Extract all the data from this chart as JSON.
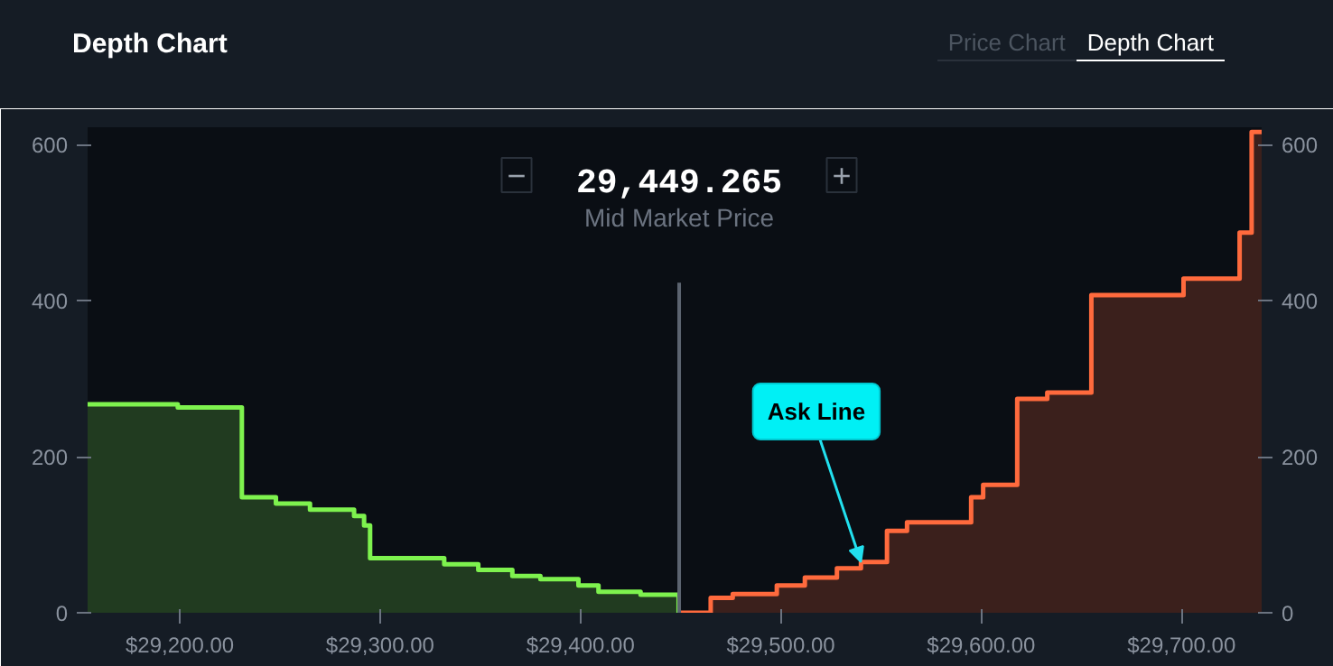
{
  "chart_data": {
    "type": "step",
    "title": "Depth Chart",
    "xlim": [
      29154,
      29740
    ],
    "ylim": [
      0,
      622
    ],
    "y2lim": [
      0,
      622
    ],
    "xticks": [
      {
        "value": 29200,
        "label": "$29,200.00"
      },
      {
        "value": 29300,
        "label": "$29,300.00"
      },
      {
        "value": 29400,
        "label": "$29,400.00"
      },
      {
        "value": 29500,
        "label": "$29,500.00"
      },
      {
        "value": 29600,
        "label": "$29,600.00"
      },
      {
        "value": 29700,
        "label": "$29,700.00"
      }
    ],
    "yticks": [
      0,
      200,
      400,
      600
    ],
    "y2ticks": [
      0,
      200,
      400,
      600
    ],
    "grid": false,
    "series": [
      {
        "color": "#7ef24e",
        "x": [
          29154,
          29199,
          29231,
          29248,
          29265,
          29287,
          29292,
          29295,
          29332,
          29349,
          29366,
          29380,
          29399,
          29409,
          29430,
          29449
        ],
        "values": [
          267,
          263,
          148,
          140,
          132,
          124,
          112,
          70,
          62,
          55,
          47,
          43,
          35,
          27,
          23,
          0
        ]
      },
      {
        "color": "#ff6a3d",
        "x": [
          29449,
          29465,
          29476,
          29498,
          29512,
          29528,
          29540,
          29553,
          29563,
          29595,
          29601,
          29618,
          29633,
          29655,
          29701,
          29729,
          29735,
          29740
        ],
        "values": [
          0,
          19,
          24,
          35,
          45,
          57,
          65,
          105,
          116,
          148,
          164,
          274,
          282,
          407,
          428,
          487,
          616,
          616
        ]
      }
    ],
    "ref_lines": [
      {
        "axis": "x",
        "value": 29449.265,
        "label": "29,449.265",
        "color": "#5c6470"
      }
    ],
    "annotations": [
      "Mid Market Price",
      "−",
      "+",
      "Price Chart",
      "Depth Chart",
      {
        "text": "Ask Line",
        "x": 29540,
        "y": 65
      }
    ]
  }
}
